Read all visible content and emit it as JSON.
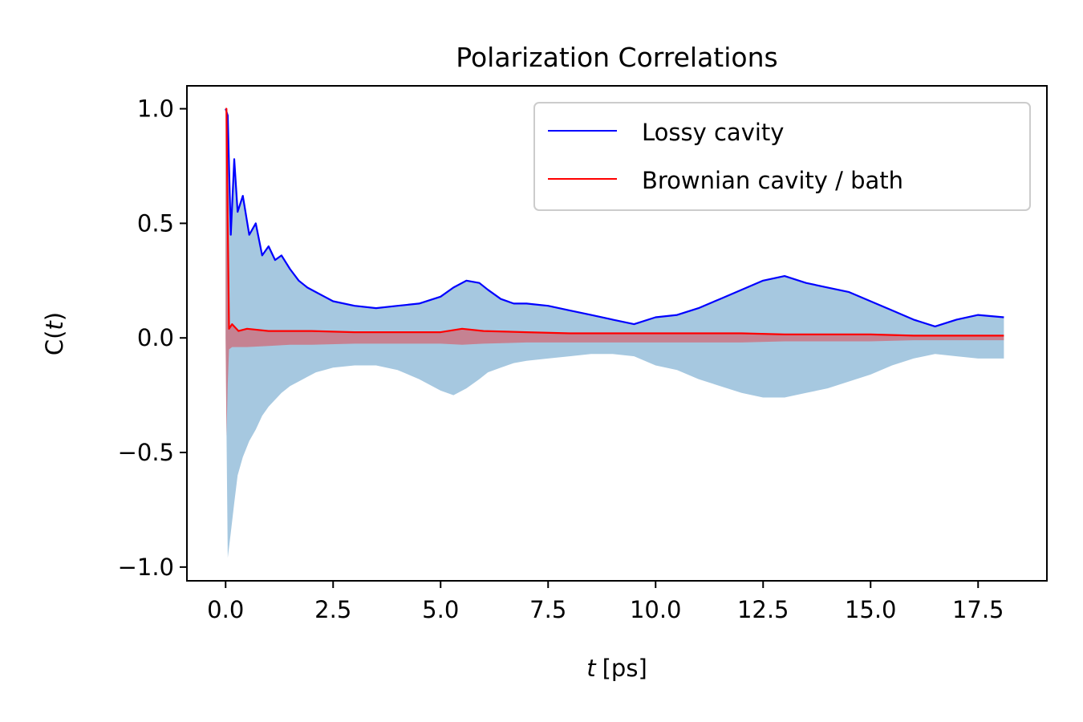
{
  "chart_data": {
    "type": "line",
    "title": "Polarization Correlations",
    "xlabel_var": "t",
    "xlabel_unit": "[ps]",
    "ylabel_prefix": "C(",
    "ylabel_var": "t",
    "ylabel_suffix": ")",
    "xlim": [
      -0.9,
      19.1
    ],
    "ylim": [
      -1.06,
      1.1
    ],
    "xticks": [
      0.0,
      2.5,
      5.0,
      7.5,
      10.0,
      12.5,
      15.0,
      17.5
    ],
    "xtick_labels": [
      "0.0",
      "2.5",
      "5.0",
      "7.5",
      "10.0",
      "12.5",
      "15.0",
      "17.5"
    ],
    "yticks": [
      1.0,
      0.5,
      0.0,
      -0.5,
      -1.0
    ],
    "ytick_labels": [
      "1.0",
      "0.5",
      "0.0",
      "−0.5",
      "−1.0"
    ],
    "grid": false,
    "legend_position": "top-right",
    "series": [
      {
        "name": "Lossy cavity",
        "color": "#0000ff",
        "fill_color": "#a6c8e0",
        "note": "upper envelope drawn as line; raw signal shown as light-blue band",
        "x": [
          0.0,
          0.05,
          0.12,
          0.2,
          0.28,
          0.4,
          0.55,
          0.7,
          0.85,
          1.0,
          1.15,
          1.3,
          1.5,
          1.7,
          1.9,
          2.1,
          2.3,
          2.5,
          3.0,
          3.5,
          4.0,
          4.5,
          5.0,
          5.3,
          5.6,
          5.9,
          6.1,
          6.4,
          6.7,
          7.0,
          7.5,
          8.0,
          8.5,
          9.0,
          9.5,
          10.0,
          10.5,
          11.0,
          11.5,
          12.0,
          12.5,
          13.0,
          13.5,
          14.0,
          14.5,
          15.0,
          15.5,
          16.0,
          16.5,
          17.0,
          17.5,
          18.1
        ],
        "upper": [
          1.0,
          0.97,
          0.45,
          0.78,
          0.55,
          0.62,
          0.45,
          0.5,
          0.36,
          0.4,
          0.34,
          0.36,
          0.3,
          0.25,
          0.22,
          0.2,
          0.18,
          0.16,
          0.14,
          0.13,
          0.14,
          0.15,
          0.18,
          0.22,
          0.25,
          0.24,
          0.21,
          0.17,
          0.15,
          0.15,
          0.14,
          0.12,
          0.1,
          0.08,
          0.06,
          0.09,
          0.1,
          0.13,
          0.17,
          0.21,
          0.25,
          0.27,
          0.24,
          0.22,
          0.2,
          0.16,
          0.12,
          0.08,
          0.05,
          0.08,
          0.1,
          0.09
        ],
        "lower": [
          0.0,
          -0.96,
          -0.85,
          -0.72,
          -0.6,
          -0.52,
          -0.45,
          -0.4,
          -0.34,
          -0.3,
          -0.27,
          -0.24,
          -0.21,
          -0.19,
          -0.17,
          -0.15,
          -0.14,
          -0.13,
          -0.12,
          -0.12,
          -0.14,
          -0.18,
          -0.23,
          -0.25,
          -0.22,
          -0.18,
          -0.15,
          -0.13,
          -0.11,
          -0.1,
          -0.09,
          -0.08,
          -0.07,
          -0.07,
          -0.08,
          -0.12,
          -0.14,
          -0.18,
          -0.21,
          -0.24,
          -0.26,
          -0.26,
          -0.24,
          -0.22,
          -0.19,
          -0.16,
          -0.12,
          -0.09,
          -0.07,
          -0.08,
          -0.09,
          -0.09
        ]
      },
      {
        "name": "Brownian cavity / bath",
        "color": "#ff0000",
        "x": [
          0.0,
          0.02,
          0.05,
          0.08,
          0.15,
          0.3,
          0.5,
          1.0,
          1.5,
          2.0,
          3.0,
          4.0,
          5.0,
          5.5,
          6.0,
          7.0,
          8.0,
          9.0,
          10.0,
          11.0,
          12.0,
          13.0,
          14.0,
          15.0,
          16.0,
          17.0,
          18.1
        ],
        "values": [
          1.0,
          1.0,
          0.5,
          0.04,
          0.06,
          0.03,
          0.04,
          0.03,
          0.03,
          0.03,
          0.025,
          0.025,
          0.025,
          0.04,
          0.03,
          0.025,
          0.02,
          0.02,
          0.02,
          0.02,
          0.02,
          0.015,
          0.015,
          0.015,
          0.01,
          0.01,
          0.01
        ],
        "band_lower": [
          0.0,
          -0.43,
          -0.2,
          -0.05,
          -0.04,
          -0.04,
          -0.04,
          -0.035,
          -0.03,
          -0.03,
          -0.025,
          -0.025,
          -0.025,
          -0.03,
          -0.025,
          -0.02,
          -0.02,
          -0.02,
          -0.02,
          -0.02,
          -0.02,
          -0.015,
          -0.015,
          -0.015,
          -0.01,
          -0.01,
          -0.01
        ]
      }
    ]
  }
}
